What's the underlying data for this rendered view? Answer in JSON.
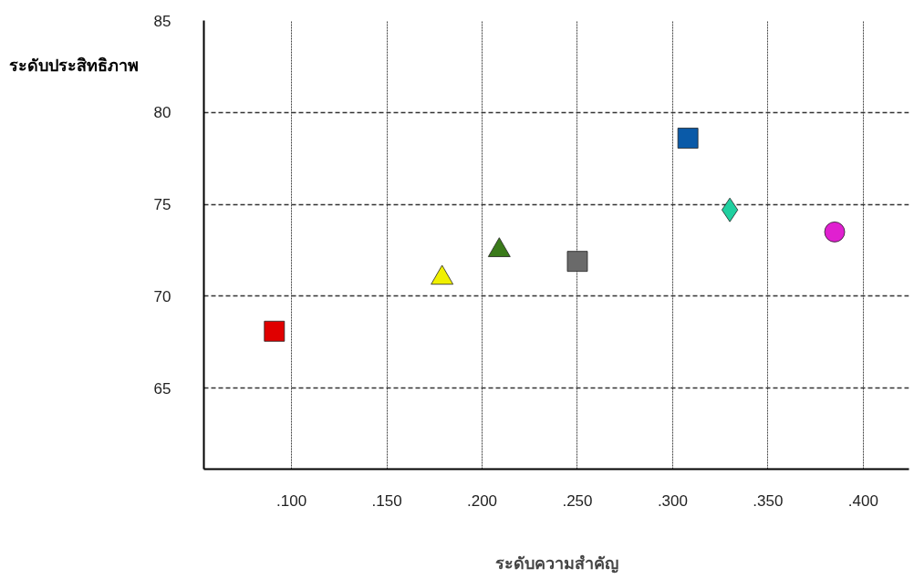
{
  "chart_data": {
    "type": "scatter",
    "xlabel": "ระดับความสำคัญ",
    "ylabel": "ระดับประสิทธิภาพ",
    "xlim": [
      0.054,
      0.424
    ],
    "ylim": [
      60.6,
      85
    ],
    "xticks": [
      {
        "value": 0.1,
        "label": ".100"
      },
      {
        "value": 0.15,
        "label": ".150"
      },
      {
        "value": 0.2,
        "label": ".200"
      },
      {
        "value": 0.25,
        "label": ".250"
      },
      {
        "value": 0.3,
        "label": ".300"
      },
      {
        "value": 0.35,
        "label": ".350"
      },
      {
        "value": 0.4,
        "label": ".400"
      }
    ],
    "yticks": [
      65,
      70,
      75,
      80,
      85
    ],
    "grid": true,
    "series": [
      {
        "color": "#e00000",
        "marker": "square",
        "x": [
          0.091
        ],
        "values": [
          68.1
        ]
      },
      {
        "color": "#f0f000",
        "marker": "triangle",
        "x": [
          0.179
        ],
        "values": [
          71.0
        ]
      },
      {
        "color": "#3a7a1a",
        "marker": "triangle",
        "x": [
          0.209
        ],
        "values": [
          72.5
        ]
      },
      {
        "color": "#6a6a6a",
        "marker": "square",
        "x": [
          0.25
        ],
        "values": [
          71.9
        ]
      },
      {
        "color": "#0a5aa8",
        "marker": "square",
        "x": [
          0.308
        ],
        "values": [
          78.6
        ]
      },
      {
        "color": "#20d0a0",
        "marker": "diamond",
        "x": [
          0.33
        ],
        "values": [
          74.7
        ]
      },
      {
        "color": "#e020d0",
        "marker": "circle",
        "x": [
          0.385
        ],
        "values": [
          73.5
        ]
      }
    ]
  }
}
